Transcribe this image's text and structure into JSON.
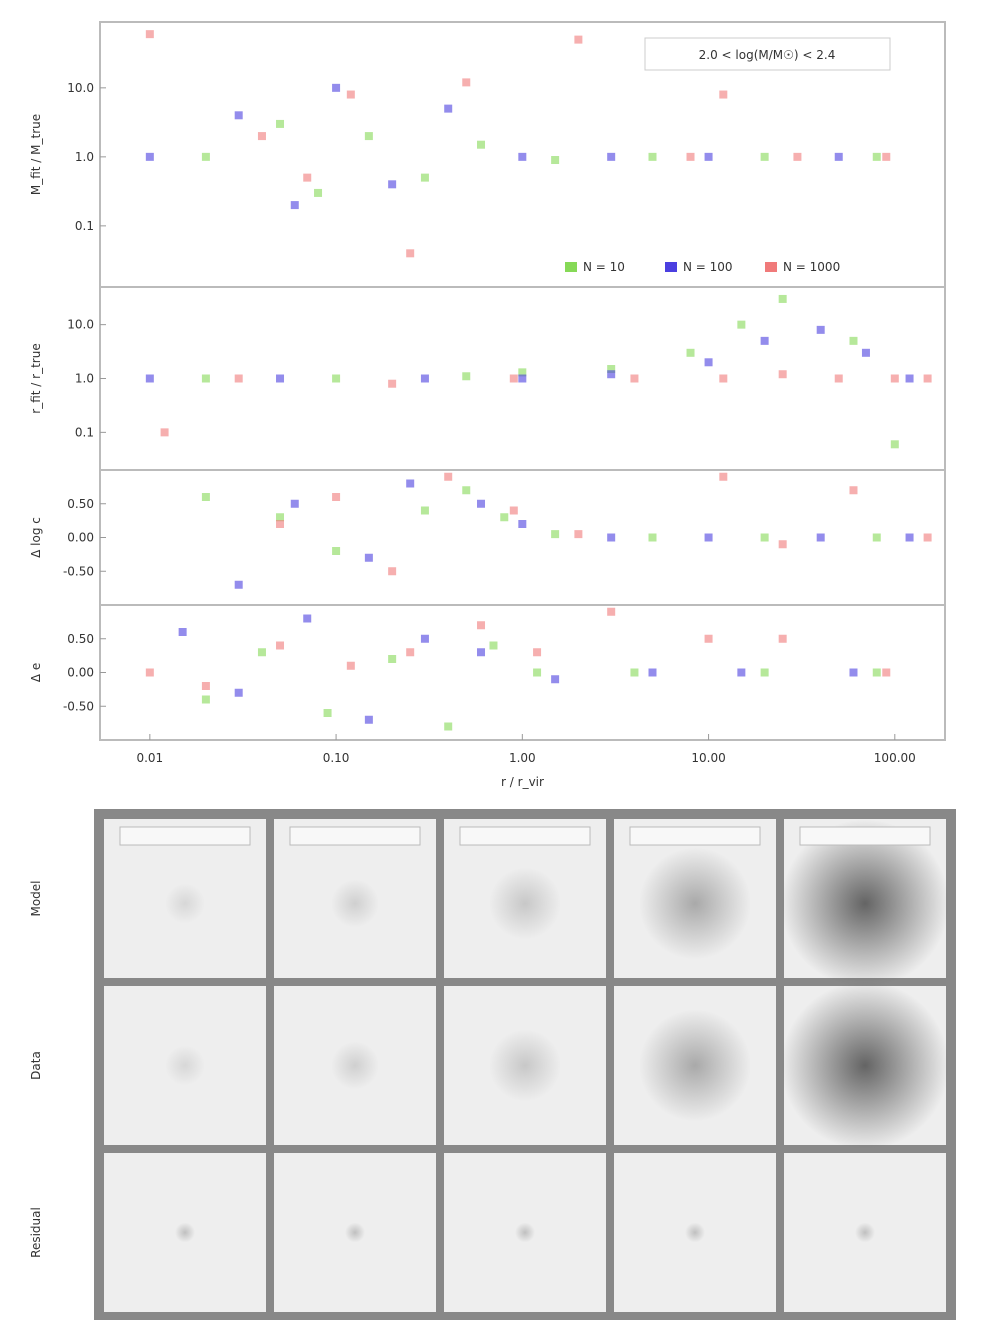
{
  "chart_data": [
    {
      "type": "scatter",
      "xscale": "log",
      "yscale": "log",
      "ylabel": "M_fit / M_true",
      "annotation": "2.0 < log(M/M☉) < 2.4",
      "legend": "lower right",
      "xlim": [
        0.0054,
        186
      ],
      "ylim": [
        0.013,
        90
      ],
      "yticks": [
        {
          "value": 10,
          "label": "10.0"
        },
        {
          "value": 1,
          "label": "1.0"
        },
        {
          "value": 0.1,
          "label": "0.1"
        }
      ],
      "series": [
        {
          "name": "N = 10",
          "color": "#86d957",
          "x": [
            0.02,
            0.05,
            0.08,
            0.15,
            0.3,
            0.6,
            1.5,
            5,
            20,
            80
          ],
          "values": [
            1,
            3,
            0.3,
            2,
            0.5,
            1.5,
            0.9,
            1,
            1,
            1
          ]
        },
        {
          "name": "N = 100",
          "color": "#4b3fe0",
          "x": [
            0.01,
            0.03,
            0.06,
            0.1,
            0.2,
            0.4,
            1,
            3,
            10,
            50
          ],
          "values": [
            1,
            4,
            0.2,
            10,
            0.4,
            5,
            1,
            1,
            1,
            1
          ]
        },
        {
          "name": "N = 1000",
          "color": "#f07a7a",
          "x": [
            0.01,
            0.04,
            0.07,
            0.12,
            0.25,
            0.5,
            2,
            8,
            12,
            30,
            90
          ],
          "values": [
            60,
            2,
            0.5,
            8,
            0.04,
            12,
            50,
            1,
            8,
            1,
            1
          ]
        }
      ]
    },
    {
      "type": "scatter",
      "xscale": "log",
      "yscale": "log",
      "ylabel": "r_fit / r_true",
      "xlim": [
        0.0054,
        186
      ],
      "ylim": [
        0.02,
        50
      ],
      "yticks": [
        {
          "value": 10,
          "label": "10.0"
        },
        {
          "value": 1,
          "label": "1.0"
        },
        {
          "value": 0.1,
          "label": "0.1"
        }
      ],
      "series": [
        {
          "name": "N = 10",
          "color": "#86d957",
          "x": [
            0.02,
            0.1,
            0.5,
            1,
            3,
            8,
            15,
            25,
            60,
            100
          ],
          "values": [
            1,
            1,
            1.1,
            1.3,
            1.5,
            3,
            10,
            30,
            5,
            0.06
          ]
        },
        {
          "name": "N = 100",
          "color": "#4b3fe0",
          "x": [
            0.01,
            0.05,
            0.3,
            1,
            3,
            10,
            20,
            40,
            70,
            120
          ],
          "values": [
            1,
            1,
            1,
            1,
            1.2,
            2,
            5,
            8,
            3,
            1
          ]
        },
        {
          "name": "N = 1000",
          "color": "#f07a7a",
          "x": [
            0.012,
            0.03,
            0.2,
            0.9,
            4,
            12,
            25,
            50,
            100,
            150
          ],
          "values": [
            0.1,
            1,
            0.8,
            1,
            1,
            1,
            1.2,
            1,
            1,
            1
          ]
        }
      ]
    },
    {
      "type": "scatter",
      "xscale": "log",
      "ylabel": "Δ log c",
      "xlim": [
        0.0054,
        186
      ],
      "ylim": [
        -1,
        1
      ],
      "yticks": [
        {
          "value": 0.5,
          "label": "0.50"
        },
        {
          "value": 0,
          "label": "0.00"
        },
        {
          "value": -0.5,
          "label": "-0.50"
        }
      ],
      "series": [
        {
          "name": "N = 10",
          "color": "#86d957",
          "x": [
            0.02,
            0.05,
            0.1,
            0.3,
            0.5,
            0.8,
            1.5,
            5,
            20,
            80
          ],
          "values": [
            0.6,
            0.3,
            -0.2,
            0.4,
            0.7,
            0.3,
            0.05,
            0,
            0,
            0
          ]
        },
        {
          "name": "N = 100",
          "color": "#4b3fe0",
          "x": [
            0.03,
            0.06,
            0.15,
            0.25,
            0.6,
            1,
            3,
            10,
            40,
            120
          ],
          "values": [
            -0.7,
            0.5,
            -0.3,
            0.8,
            0.5,
            0.2,
            0,
            0,
            0,
            0
          ]
        },
        {
          "name": "N = 1000",
          "color": "#f07a7a",
          "x": [
            0.05,
            0.1,
            0.2,
            0.4,
            0.9,
            2,
            12,
            25,
            60,
            150
          ],
          "values": [
            0.2,
            0.6,
            -0.5,
            0.9,
            0.4,
            0.05,
            0.9,
            -0.1,
            0.7,
            0
          ]
        }
      ]
    },
    {
      "type": "scatter",
      "xscale": "log",
      "ylabel": "Δ e",
      "xlabel": "r / r_vir",
      "xlim": [
        0.0054,
        186
      ],
      "ylim": [
        -1,
        1
      ],
      "xticks": [
        {
          "value": 0.01,
          "label": "0.01"
        },
        {
          "value": 0.1,
          "label": "0.10"
        },
        {
          "value": 1,
          "label": "1.00"
        },
        {
          "value": 10,
          "label": "10.00"
        },
        {
          "value": 100,
          "label": "100.00"
        }
      ],
      "yticks": [
        {
          "value": 0.5,
          "label": "0.50"
        },
        {
          "value": 0,
          "label": "0.00"
        },
        {
          "value": -0.5,
          "label": "-0.50"
        }
      ],
      "series": [
        {
          "name": "N = 10",
          "color": "#86d957",
          "x": [
            0.02,
            0.04,
            0.09,
            0.2,
            0.4,
            0.7,
            1.2,
            4,
            20,
            80
          ],
          "values": [
            -0.4,
            0.3,
            -0.6,
            0.2,
            -0.8,
            0.4,
            0,
            0,
            0,
            0
          ]
        },
        {
          "name": "N = 100",
          "color": "#4b3fe0",
          "x": [
            0.015,
            0.03,
            0.07,
            0.15,
            0.3,
            0.6,
            1.5,
            5,
            15,
            60
          ],
          "values": [
            0.6,
            -0.3,
            0.8,
            -0.7,
            0.5,
            0.3,
            -0.1,
            0,
            0,
            0
          ]
        },
        {
          "name": "N = 1000",
          "color": "#f07a7a",
          "x": [
            0.01,
            0.02,
            0.05,
            0.12,
            0.25,
            0.6,
            1.2,
            3,
            10,
            25,
            90
          ],
          "values": [
            0,
            -0.2,
            0.4,
            0.1,
            0.3,
            0.7,
            0.3,
            0.9,
            0.5,
            0.5,
            0
          ]
        }
      ]
    }
  ],
  "image_grid": {
    "row_labels": [
      "Model",
      "Data",
      "Residual"
    ]
  }
}
